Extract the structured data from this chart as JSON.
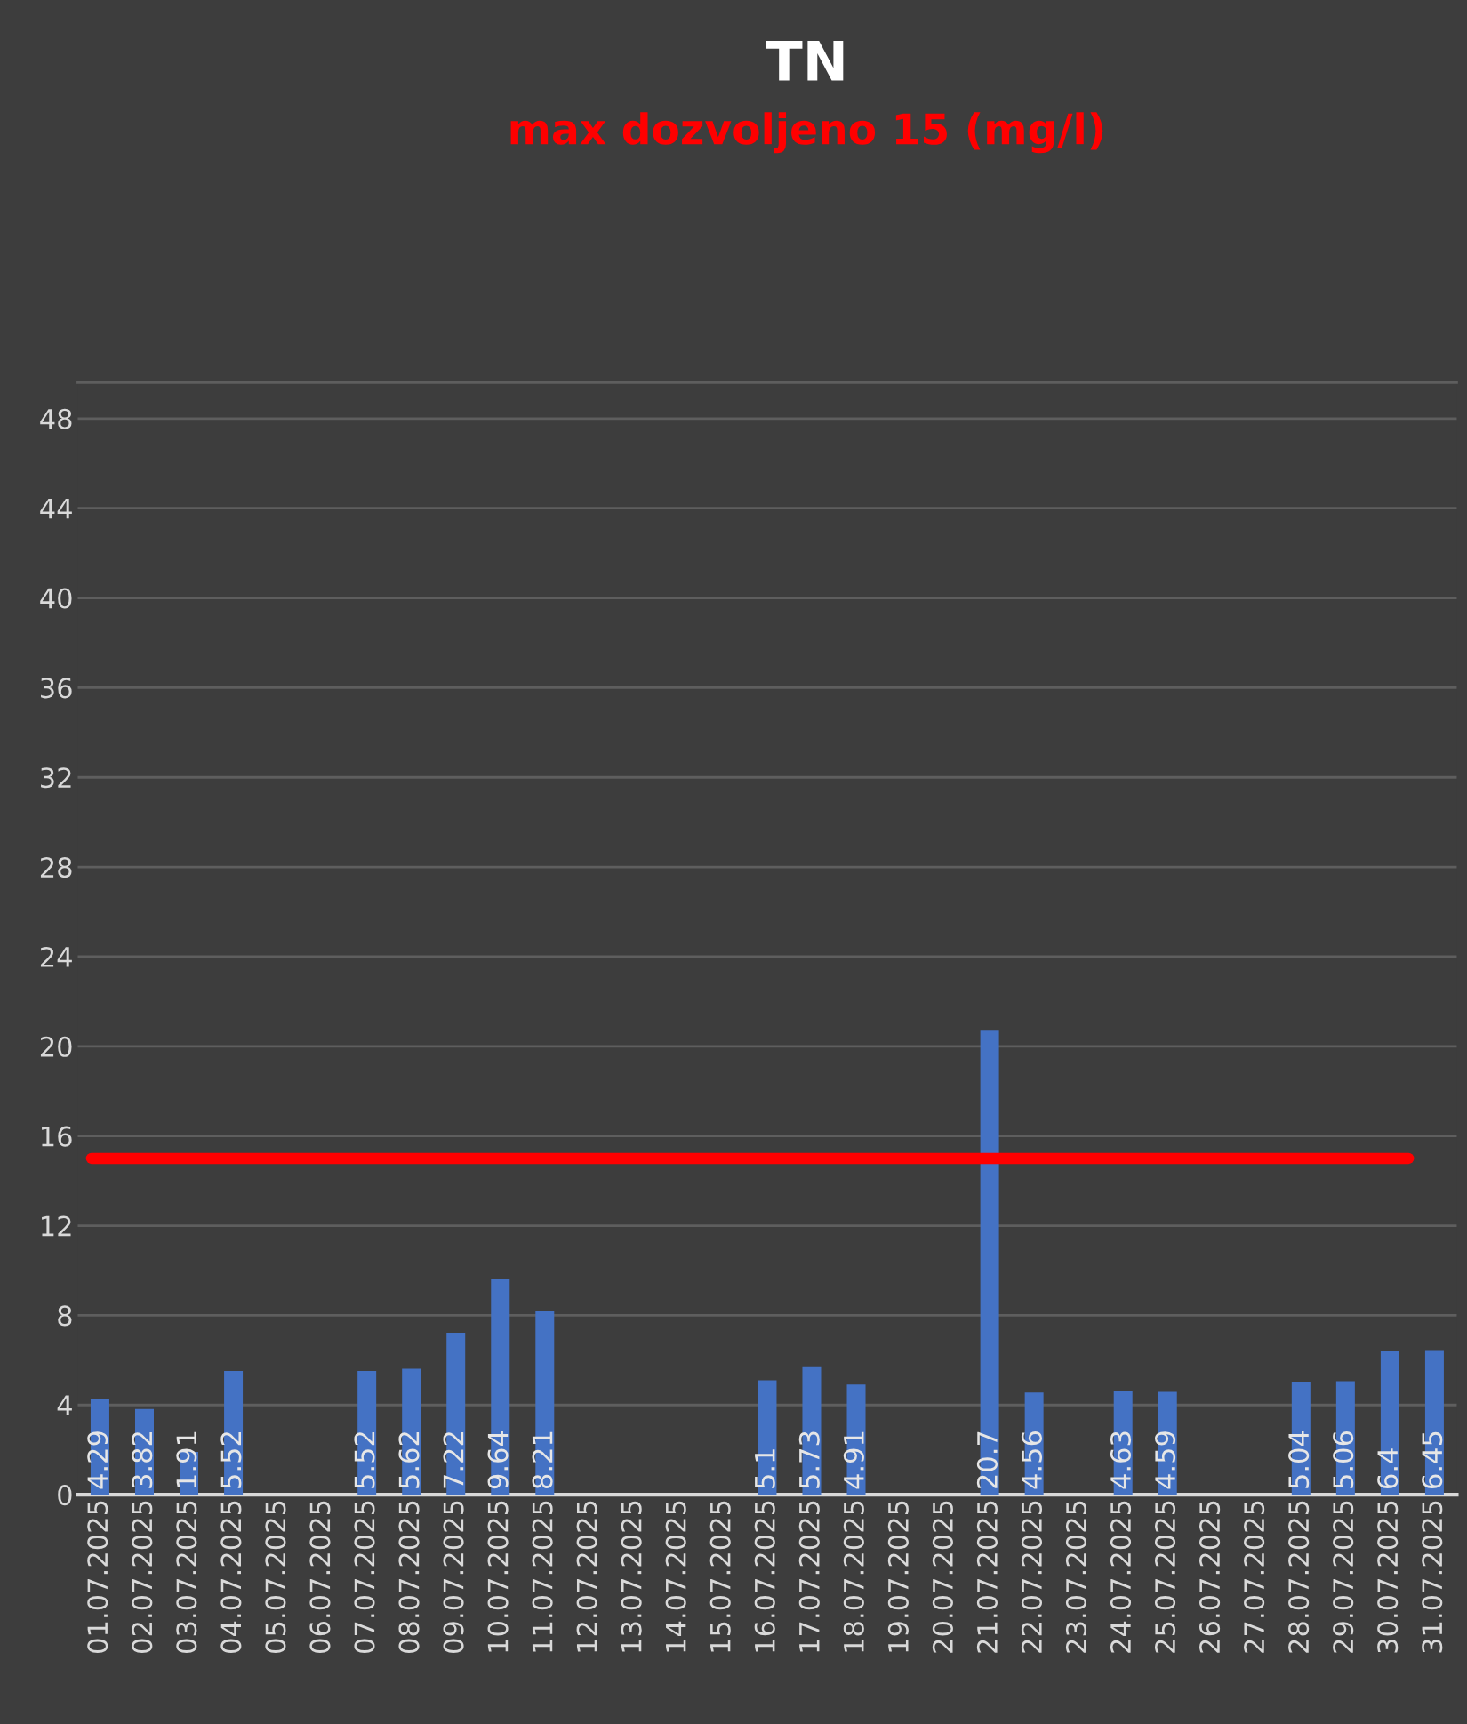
{
  "chart_data": {
    "type": "bar",
    "title": "TN",
    "subtitle": "max dozvoljeno 15 (mg/l)",
    "categories": [
      "01.07.2025",
      "02.07.2025",
      "03.07.2025",
      "04.07.2025",
      "05.07.2025",
      "06.07.2025",
      "07.07.2025",
      "08.07.2025",
      "09.07.2025",
      "10.07.2025",
      "11.07.2025",
      "12.07.2025",
      "13.07.2025",
      "14.07.2025",
      "15.07.2025",
      "16.07.2025",
      "17.07.2025",
      "18.07.2025",
      "19.07.2025",
      "20.07.2025",
      "21.07.2025",
      "22.07.2025",
      "23.07.2025",
      "24.07.2025",
      "25.07.2025",
      "26.07.2025",
      "27.07.2025",
      "28.07.2025",
      "29.07.2025",
      "30.07.2025",
      "31.07.2025"
    ],
    "values": [
      4.29,
      3.82,
      1.91,
      5.52,
      null,
      null,
      5.52,
      5.62,
      7.22,
      9.64,
      8.21,
      null,
      null,
      null,
      null,
      5.1,
      5.73,
      4.91,
      null,
      null,
      20.7,
      4.56,
      null,
      4.63,
      4.59,
      null,
      null,
      5.04,
      5.06,
      6.4,
      6.45
    ],
    "color": "#4472c4",
    "ylim": [
      0,
      49.6
    ],
    "yticks": [
      0,
      4,
      8,
      12,
      16,
      20,
      24,
      28,
      32,
      36,
      40,
      44,
      48
    ],
    "grid": "y",
    "data_labels": true,
    "ref_lines": [
      {
        "axis": "y",
        "value": 15,
        "label": null,
        "color": "#ff0000",
        "line_style": "solid"
      }
    ]
  }
}
